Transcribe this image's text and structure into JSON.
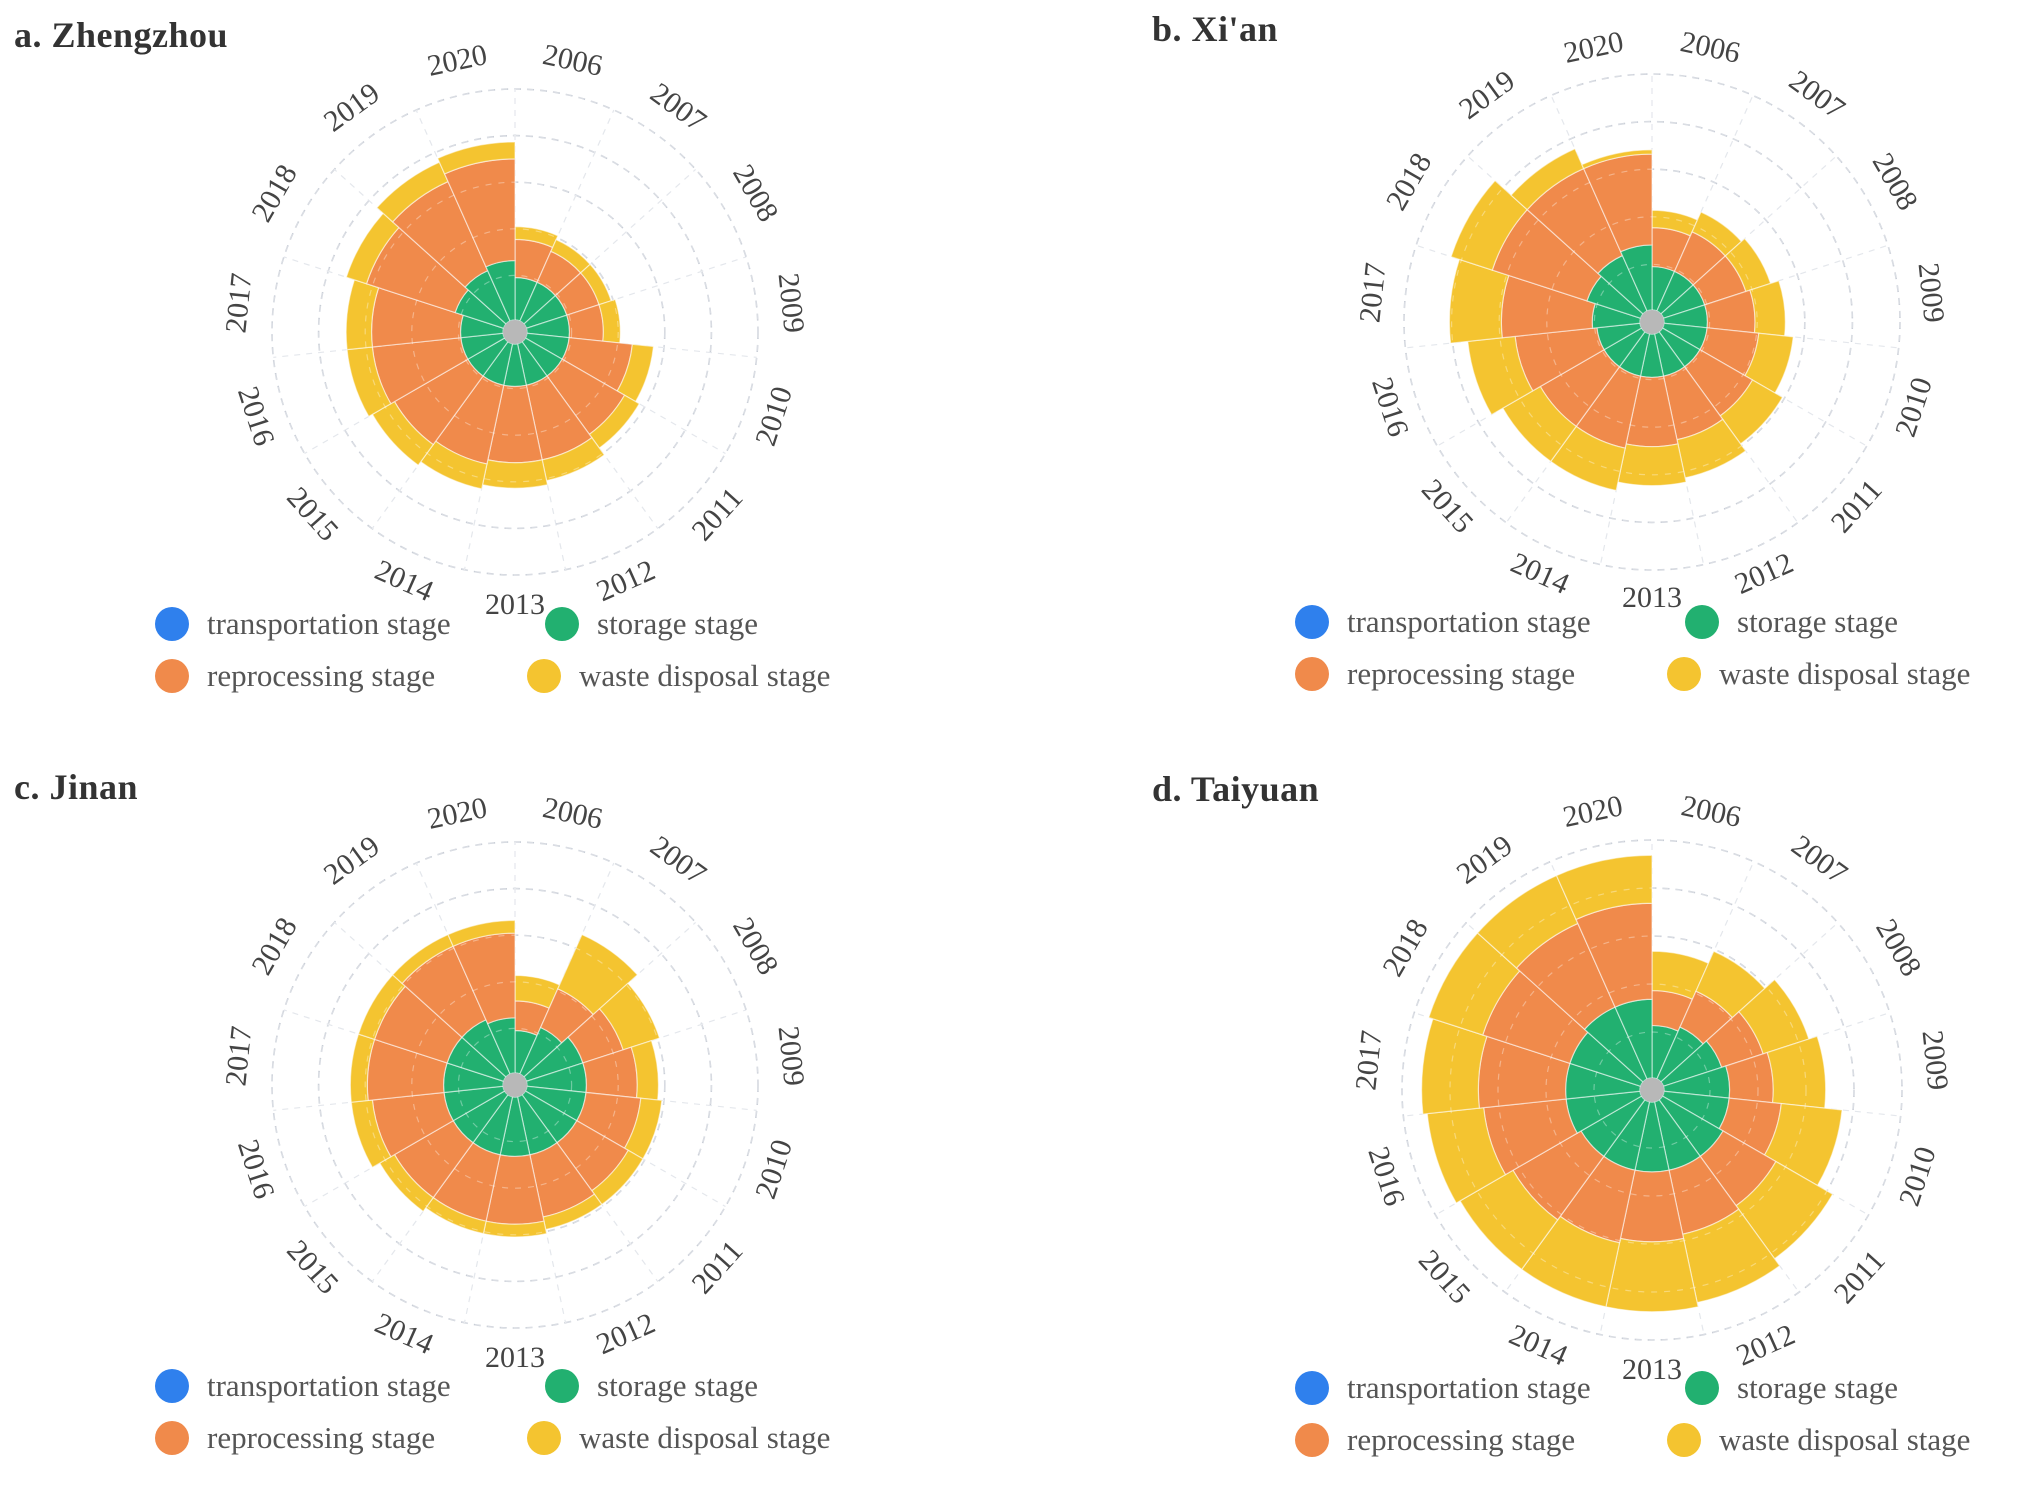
{
  "colors": {
    "transportation": "#2f80ed",
    "storage": "#22b070",
    "reprocessing": "#f08a4b",
    "waste": "#f4c430",
    "grid": "#c8cdd6",
    "center": "#b8b8b8"
  },
  "legend": {
    "transportation": "transportation stage",
    "storage": "storage stage",
    "reprocessing": "reprocessing stage",
    "waste": "waste disposal stage"
  },
  "chart_data": [
    {
      "type": "stacked-polar-bar",
      "title": "a. Zhengzhou",
      "categories": [
        "2006",
        "2007",
        "2008",
        "2009",
        "2010",
        "2011",
        "2012",
        "2013",
        "2014",
        "2015",
        "2016",
        "2017",
        "2018",
        "2019",
        "2020"
      ],
      "series": [
        {
          "name": "transportation stage",
          "values": [
            0.05,
            0.05,
            0.05,
            0.05,
            0.05,
            0.05,
            0.05,
            0.05,
            0.05,
            0.05,
            0.05,
            0.05,
            0.05,
            0.05,
            0.05
          ]
        },
        {
          "name": "storage stage",
          "values": [
            1.0,
            1.0,
            1.0,
            1.0,
            1.0,
            1.0,
            1.0,
            1.0,
            1.0,
            1.0,
            1.0,
            1.0,
            1.2,
            1.3,
            1.4
          ]
        },
        {
          "name": "reprocessing stage",
          "values": [
            0.9,
            0.8,
            0.8,
            0.8,
            1.5,
            1.7,
            1.8,
            1.8,
            1.9,
            2.0,
            2.1,
            2.1,
            2.2,
            2.3,
            2.4
          ]
        },
        {
          "name": "waste disposal stage",
          "values": [
            0.3,
            0.3,
            0.3,
            0.4,
            0.5,
            0.4,
            0.5,
            0.6,
            0.6,
            0.6,
            0.6,
            0.6,
            0.5,
            0.5,
            0.4
          ]
        }
      ],
      "rmax": 5.5
    },
    {
      "type": "stacked-polar-bar",
      "title": "b. Xi'an",
      "categories": [
        "2006",
        "2007",
        "2008",
        "2009",
        "2010",
        "2011",
        "2012",
        "2013",
        "2014",
        "2015",
        "2016",
        "2017",
        "2018",
        "2019",
        "2020"
      ],
      "series": [
        {
          "name": "transportation stage",
          "values": [
            0.05,
            0.05,
            0.05,
            0.05,
            0.05,
            0.05,
            0.05,
            0.05,
            0.05,
            0.05,
            0.05,
            0.05,
            0.05,
            0.05,
            0.05
          ]
        },
        {
          "name": "storage stage",
          "values": [
            1.0,
            1.0,
            1.0,
            1.0,
            1.0,
            1.0,
            1.0,
            1.0,
            1.0,
            1.0,
            1.0,
            1.1,
            1.3,
            1.4,
            1.5
          ]
        },
        {
          "name": "reprocessing stage",
          "values": [
            0.9,
            1.0,
            1.0,
            1.1,
            1.2,
            1.4,
            1.5,
            1.6,
            1.7,
            1.7,
            1.9,
            2.1,
            2.3,
            2.2,
            2.1
          ]
        },
        {
          "name": "waste disposal stage",
          "values": [
            0.4,
            0.5,
            0.6,
            0.7,
            0.8,
            0.8,
            0.9,
            0.9,
            1.0,
            1.0,
            1.1,
            1.2,
            1.0,
            0.5,
            0.1
          ]
        }
      ],
      "rmax": 5.5
    },
    {
      "type": "stacked-polar-bar",
      "title": "c. Jinan",
      "categories": [
        "2006",
        "2007",
        "2008",
        "2009",
        "2010",
        "2011",
        "2012",
        "2013",
        "2014",
        "2015",
        "2016",
        "2017",
        "2018",
        "2019",
        "2020"
      ],
      "series": [
        {
          "name": "transportation stage",
          "values": [
            0.05,
            0.05,
            0.05,
            0.05,
            0.05,
            0.05,
            0.05,
            0.05,
            0.05,
            0.05,
            0.05,
            0.05,
            0.05,
            0.05,
            0.05
          ]
        },
        {
          "name": "storage stage",
          "values": [
            1.0,
            1.2,
            1.4,
            1.4,
            1.4,
            1.4,
            1.4,
            1.4,
            1.4,
            1.4,
            1.4,
            1.4,
            1.4,
            1.4,
            1.3
          ]
        },
        {
          "name": "reprocessing stage",
          "values": [
            0.7,
            1.0,
            1.0,
            1.2,
            1.3,
            1.4,
            1.5,
            1.6,
            1.6,
            1.6,
            1.7,
            1.8,
            1.8,
            1.9,
            2.0
          ]
        },
        {
          "name": "waste disposal stage",
          "values": [
            0.6,
            1.4,
            0.9,
            0.5,
            0.5,
            0.4,
            0.3,
            0.3,
            0.3,
            0.4,
            0.5,
            0.4,
            0.4,
            0.3,
            0.3
          ]
        }
      ],
      "rmax": 5.5
    },
    {
      "type": "stacked-polar-bar",
      "title": "d. Taiyuan",
      "categories": [
        "2006",
        "2007",
        "2008",
        "2009",
        "2010",
        "2011",
        "2012",
        "2013",
        "2014",
        "2015",
        "2016",
        "2017",
        "2018",
        "2019",
        "2020"
      ],
      "series": [
        {
          "name": "transportation stage",
          "values": [
            0.05,
            0.05,
            0.05,
            0.05,
            0.05,
            0.05,
            0.05,
            0.05,
            0.05,
            0.05,
            0.05,
            0.05,
            0.05,
            0.05,
            0.05
          ]
        },
        {
          "name": "storage stage",
          "values": [
            1.2,
            1.3,
            1.4,
            1.5,
            1.5,
            1.6,
            1.6,
            1.6,
            1.6,
            1.6,
            1.7,
            1.7,
            1.7,
            1.8,
            1.8
          ]
        },
        {
          "name": "reprocessing stage",
          "values": [
            0.8,
            0.9,
            1.0,
            1.0,
            1.2,
            1.4,
            1.5,
            1.6,
            1.7,
            1.8,
            1.9,
            2.0,
            2.1,
            2.1,
            2.2
          ]
        },
        {
          "name": "waste disposal stage",
          "values": [
            0.9,
            1.0,
            1.1,
            1.2,
            1.4,
            1.5,
            1.6,
            1.6,
            1.5,
            1.4,
            1.3,
            1.3,
            1.3,
            1.2,
            1.1
          ]
        }
      ],
      "rmax": 5.5
    }
  ]
}
